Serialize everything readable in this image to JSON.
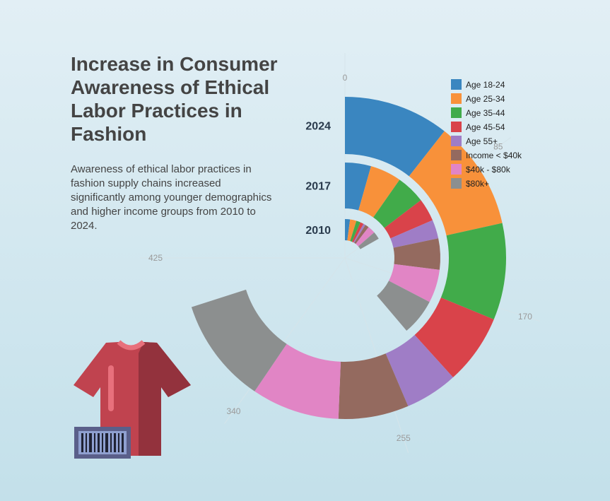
{
  "title": "Increase in Consumer Awareness of Ethical Labor Practices in Fashion",
  "subtitle": "Awareness of ethical labor practices in fashion supply chains increased significantly among younger demographics and higher income groups from 2010 to 2024.",
  "chart_data": {
    "type": "radial-bar",
    "categories": [
      "Age 18-24",
      "Age 25-34",
      "Age 35-44",
      "Age 45-54",
      "Age 55+",
      "Income < $40k",
      "$40k - $80k",
      "$80k+"
    ],
    "colors": [
      "#3a86c0",
      "#f8913a",
      "#41ab4a",
      "#d9434a",
      "#9f7dc6",
      "#946a5f",
      "#e185c5",
      "#8c8f8f"
    ],
    "series": [
      {
        "name": "2010",
        "values": [
          12,
          15,
          10,
          8,
          5,
          9,
          18,
          18
        ]
      },
      {
        "name": "2017",
        "values": [
          25,
          30,
          28,
          22,
          18,
          30,
          32,
          35
        ]
      },
      {
        "name": "2024",
        "values": [
          60,
          62,
          55,
          40,
          30,
          40,
          50,
          60
        ]
      }
    ],
    "axis_max": 425,
    "ticks": [
      {
        "value": 0,
        "label": "0"
      },
      {
        "value": 85,
        "label": "85"
      },
      {
        "value": 170,
        "label": "170"
      },
      {
        "value": 255,
        "label": "255"
      },
      {
        "value": 340,
        "label": "340"
      },
      {
        "value": 425,
        "label": "425"
      }
    ],
    "legend_position": "top-right",
    "grid": false
  },
  "illustration": {
    "name": "t-shirt-with-price-tag",
    "shirt_color": "#c0434f",
    "tag_color": "#5a5f8a"
  }
}
